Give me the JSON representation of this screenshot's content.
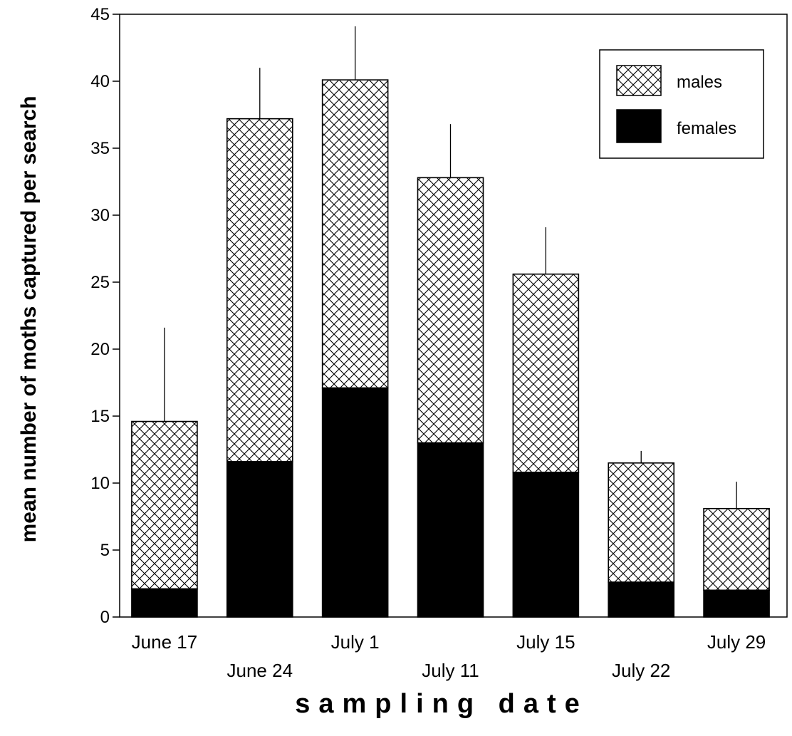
{
  "chart_data": {
    "type": "bar",
    "stacked": true,
    "categories": [
      "June 17",
      "June 24",
      "July 1",
      "July 11",
      "July 15",
      "July 22",
      "July 29"
    ],
    "series": [
      {
        "name": "females",
        "values": [
          2.1,
          11.6,
          17.1,
          13.0,
          10.8,
          2.6,
          2.0
        ],
        "fill": "solid-black"
      },
      {
        "name": "males",
        "values": [
          12.5,
          25.6,
          23.0,
          19.8,
          14.8,
          8.9,
          6.1
        ],
        "fill": "crosshatch"
      }
    ],
    "totals": [
      14.6,
      37.2,
      40.1,
      32.8,
      25.6,
      11.5,
      8.1
    ],
    "error_bars_upper": [
      21.6,
      41.0,
      44.1,
      36.8,
      29.1,
      12.4,
      10.1
    ],
    "ylabel": "mean number of moths captured per search",
    "xlabel": "sampling date",
    "ylim": [
      0,
      45
    ],
    "yticks": [
      0,
      5,
      10,
      15,
      20,
      25,
      30,
      35,
      40,
      45
    ],
    "legend": {
      "placement": "top-right",
      "entries": [
        "males",
        "females"
      ]
    },
    "grid": false,
    "colors": {
      "females": "#000000",
      "males_hatch": "#000000",
      "background": "#ffffff"
    }
  }
}
